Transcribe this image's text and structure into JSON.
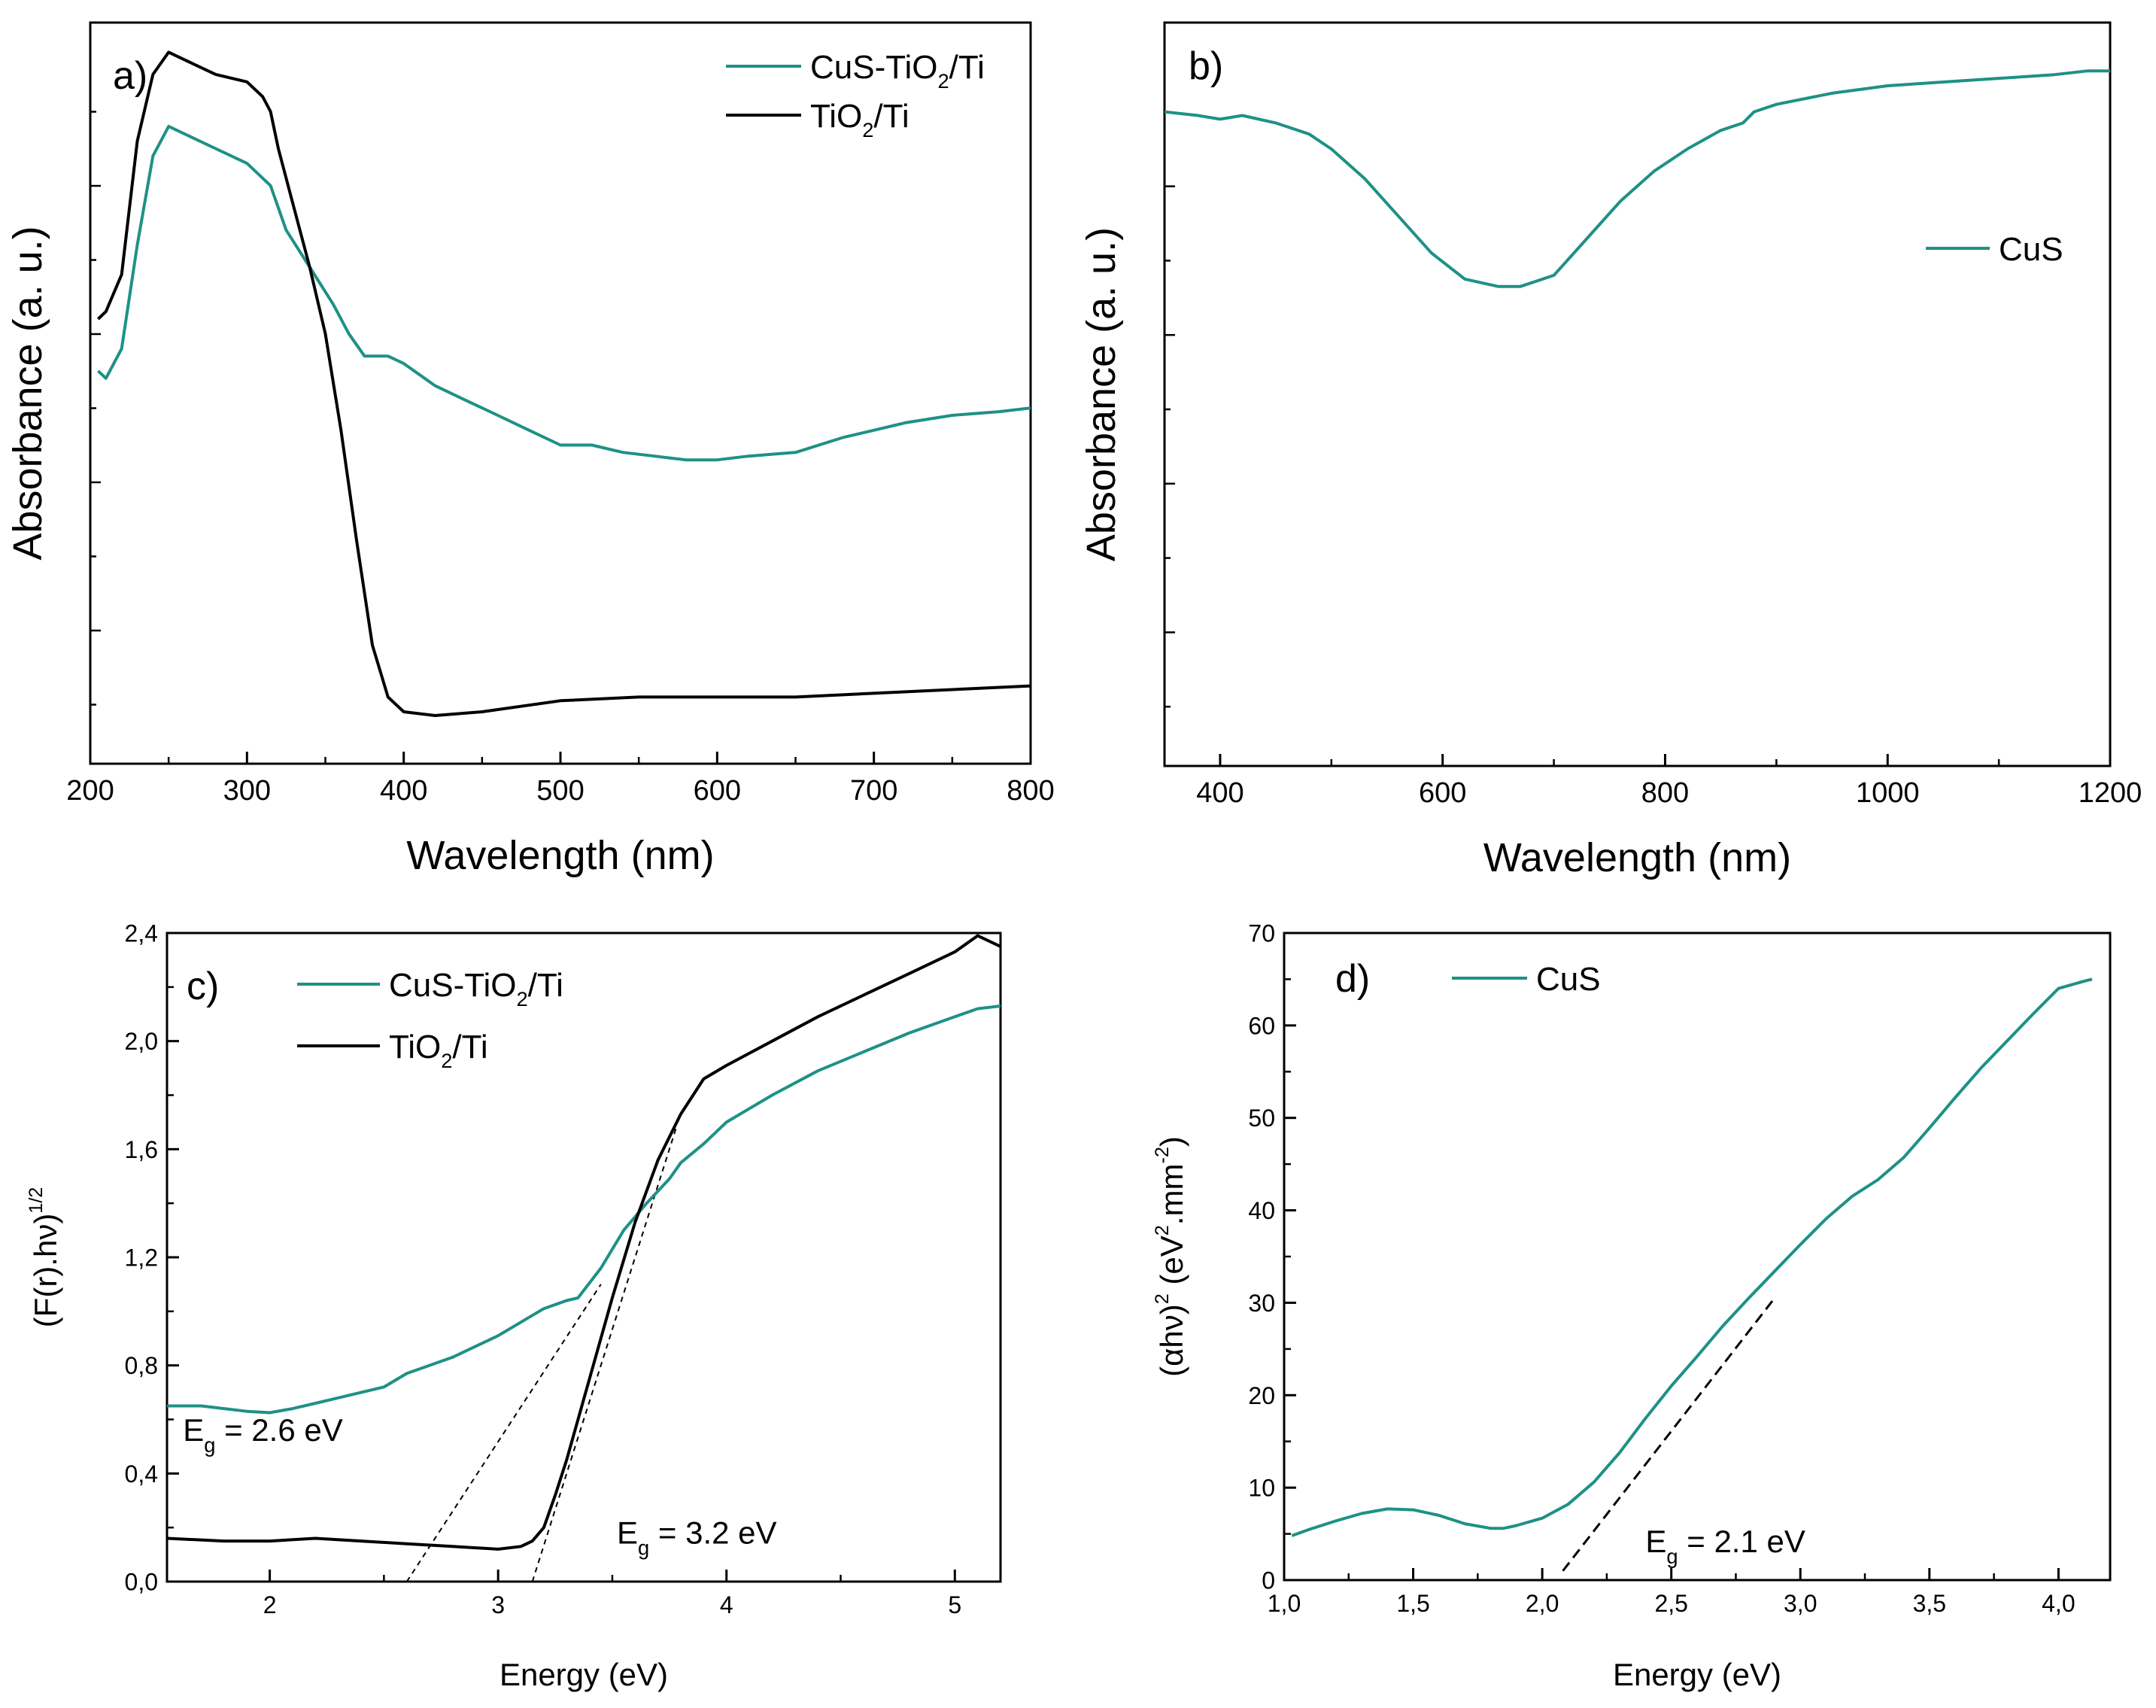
{
  "figure": {
    "colors": {
      "teal": "#1e9185",
      "black": "#000000"
    }
  },
  "chart_data": [
    {
      "id": "a",
      "type": "line",
      "panel_label": "a)",
      "xlabel": "Wavelength (nm)",
      "ylabel": "Absorbance (a. u.)",
      "xlim": [
        200,
        800
      ],
      "ylim": [
        0,
        1
      ],
      "y_ticks_labeled": false,
      "x_ticks": [
        "200",
        "300",
        "400",
        "500",
        "600",
        "700",
        "800"
      ],
      "legend": [
        {
          "prefix": "CuS-TiO",
          "sub": "2",
          "suffix": "/Ti",
          "color": "teal"
        },
        {
          "prefix": "TiO",
          "sub": "2",
          "suffix": "/Ti",
          "color": "black"
        }
      ],
      "series": [
        {
          "name": "CuS-TiO2/Ti",
          "color": "teal",
          "x": [
            205,
            210,
            220,
            230,
            240,
            250,
            260,
            280,
            300,
            315,
            325,
            340,
            355,
            365,
            375,
            390,
            400,
            420,
            440,
            460,
            480,
            500,
            520,
            540,
            560,
            580,
            600,
            620,
            650,
            680,
            700,
            720,
            750,
            780,
            800
          ],
          "y": [
            0.53,
            0.52,
            0.56,
            0.7,
            0.82,
            0.86,
            0.85,
            0.83,
            0.81,
            0.78,
            0.72,
            0.67,
            0.62,
            0.58,
            0.55,
            0.55,
            0.54,
            0.51,
            0.49,
            0.47,
            0.45,
            0.43,
            0.43,
            0.42,
            0.415,
            0.41,
            0.41,
            0.415,
            0.42,
            0.44,
            0.45,
            0.46,
            0.47,
            0.475,
            0.48
          ]
        },
        {
          "name": "TiO2/Ti",
          "color": "black",
          "x": [
            205,
            210,
            220,
            230,
            240,
            250,
            260,
            280,
            300,
            310,
            315,
            320,
            330,
            340,
            350,
            360,
            370,
            380,
            390,
            400,
            420,
            450,
            500,
            550,
            600,
            650,
            700,
            750,
            800
          ],
          "y": [
            0.6,
            0.61,
            0.66,
            0.84,
            0.93,
            0.96,
            0.95,
            0.93,
            0.92,
            0.9,
            0.88,
            0.83,
            0.75,
            0.67,
            0.58,
            0.45,
            0.3,
            0.16,
            0.09,
            0.07,
            0.065,
            0.07,
            0.085,
            0.09,
            0.09,
            0.09,
            0.095,
            0.1,
            0.105
          ]
        }
      ]
    },
    {
      "id": "b",
      "type": "line",
      "panel_label": "b)",
      "xlabel": "Wavelength (nm)",
      "ylabel": "Absorbance (a. u.)",
      "xlim": [
        350,
        1200
      ],
      "ylim": [
        0,
        1
      ],
      "y_ticks_labeled": false,
      "x_ticks": [
        "400",
        "600",
        "800",
        "1000",
        "1200"
      ],
      "legend": [
        {
          "prefix": "CuS",
          "sub": "",
          "suffix": "",
          "color": "teal"
        }
      ],
      "series": [
        {
          "name": "CuS",
          "color": "teal",
          "x": [
            350,
            380,
            400,
            420,
            450,
            480,
            500,
            530,
            560,
            590,
            620,
            650,
            670,
            700,
            730,
            760,
            790,
            820,
            850,
            870,
            880,
            900,
            950,
            1000,
            1050,
            1100,
            1150,
            1180,
            1200
          ],
          "y": [
            0.88,
            0.875,
            0.87,
            0.875,
            0.865,
            0.85,
            0.83,
            0.79,
            0.74,
            0.69,
            0.655,
            0.645,
            0.645,
            0.66,
            0.71,
            0.76,
            0.8,
            0.83,
            0.855,
            0.865,
            0.88,
            0.89,
            0.905,
            0.915,
            0.92,
            0.925,
            0.93,
            0.935,
            0.935
          ]
        }
      ]
    },
    {
      "id": "c",
      "type": "line",
      "panel_label": "c)",
      "xlabel": "Energy (eV)",
      "ylabel": "(F(r).hν)",
      "ylabel_sup": "1/2",
      "xlim": [
        1.55,
        5.2
      ],
      "ylim": [
        0,
        2.4
      ],
      "x_ticks": [
        "2",
        "3",
        "4",
        "5"
      ],
      "y_ticks": [
        "0,0",
        "0,4",
        "0,8",
        "1,2",
        "1,6",
        "2,0",
        "2,4"
      ],
      "legend": [
        {
          "prefix": "CuS-TiO",
          "sub": "2",
          "suffix": "/Ti",
          "color": "teal"
        },
        {
          "prefix": "TiO",
          "sub": "2",
          "suffix": "/Ti",
          "color": "black"
        }
      ],
      "annotations": [
        {
          "main": "E",
          "sub": "g",
          "rest": " = 2.6 eV",
          "x": 1.62,
          "y": 0.52
        },
        {
          "main": "E",
          "sub": "g",
          "rest": " = 3.2 eV",
          "x": 3.52,
          "y": 0.14
        }
      ],
      "tangents": [
        {
          "x": [
            2.6,
            3.45
          ],
          "y": [
            0.0,
            1.1
          ]
        },
        {
          "x": [
            3.15,
            3.78
          ],
          "y": [
            0.0,
            1.68
          ]
        }
      ],
      "series": [
        {
          "name": "CuS-TiO2/Ti",
          "color": "teal",
          "x": [
            1.55,
            1.7,
            1.8,
            1.9,
            2.0,
            2.1,
            2.2,
            2.3,
            2.4,
            2.5,
            2.6,
            2.8,
            3.0,
            3.1,
            3.2,
            3.3,
            3.35,
            3.45,
            3.55,
            3.65,
            3.75,
            3.8,
            3.9,
            4.0,
            4.2,
            4.4,
            4.6,
            4.8,
            5.0,
            5.1,
            5.2
          ],
          "y": [
            0.65,
            0.65,
            0.64,
            0.63,
            0.625,
            0.64,
            0.66,
            0.68,
            0.7,
            0.72,
            0.77,
            0.83,
            0.91,
            0.96,
            1.01,
            1.04,
            1.05,
            1.16,
            1.3,
            1.4,
            1.49,
            1.55,
            1.62,
            1.7,
            1.8,
            1.89,
            1.96,
            2.03,
            2.09,
            2.12,
            2.13
          ]
        },
        {
          "name": "TiO2/Ti",
          "color": "black",
          "x": [
            1.55,
            1.8,
            2.0,
            2.2,
            2.4,
            2.6,
            2.8,
            3.0,
            3.1,
            3.15,
            3.2,
            3.25,
            3.3,
            3.4,
            3.5,
            3.6,
            3.7,
            3.8,
            3.9,
            4.0,
            4.2,
            4.4,
            4.6,
            4.8,
            5.0,
            5.1,
            5.2
          ],
          "y": [
            0.16,
            0.15,
            0.15,
            0.16,
            0.15,
            0.14,
            0.13,
            0.12,
            0.13,
            0.15,
            0.2,
            0.32,
            0.45,
            0.75,
            1.05,
            1.33,
            1.56,
            1.73,
            1.86,
            1.91,
            2.0,
            2.09,
            2.17,
            2.25,
            2.33,
            2.39,
            2.35
          ]
        }
      ]
    },
    {
      "id": "d",
      "type": "line",
      "panel_label": "d)",
      "xlabel": "Energy (eV)",
      "ylabel": "(αhν)",
      "ylabel_sup": "2",
      "ylabel_unit_a": " (eV",
      "ylabel_unit_sup1": "2",
      "ylabel_unit_b": ".mm",
      "ylabel_unit_sup2": "-2",
      "ylabel_unit_c": ")",
      "xlim": [
        1.0,
        4.2
      ],
      "ylim": [
        0,
        70
      ],
      "x_ticks": [
        "1,0",
        "1,5",
        "2,0",
        "2,5",
        "3,0",
        "3,5",
        "4,0"
      ],
      "y_ticks": [
        "0",
        "10",
        "20",
        "30",
        "40",
        "50",
        "60",
        "70"
      ],
      "legend": [
        {
          "prefix": "CuS",
          "sub": "",
          "suffix": "",
          "color": "teal"
        }
      ],
      "annotations": [
        {
          "main": "E",
          "sub": "g",
          "rest": " = 2.1 eV",
          "x": 2.4,
          "y": 3.0
        }
      ],
      "tangents": [
        {
          "x": [
            2.08,
            2.9
          ],
          "y": [
            1.0,
            30.5
          ]
        }
      ],
      "series": [
        {
          "name": "CuS",
          "color": "teal",
          "x": [
            1.03,
            1.1,
            1.2,
            1.3,
            1.4,
            1.5,
            1.6,
            1.7,
            1.8,
            1.85,
            1.9,
            2.0,
            2.1,
            2.2,
            2.3,
            2.4,
            2.5,
            2.6,
            2.7,
            2.8,
            2.9,
            3.0,
            3.1,
            3.2,
            3.3,
            3.4,
            3.5,
            3.6,
            3.7,
            3.8,
            3.9,
            4.0,
            4.1,
            4.13
          ],
          "y": [
            4.8,
            5.5,
            6.4,
            7.2,
            7.7,
            7.6,
            7.0,
            6.1,
            5.6,
            5.6,
            5.9,
            6.7,
            8.2,
            10.6,
            13.8,
            17.5,
            21.0,
            24.2,
            27.5,
            30.5,
            33.4,
            36.3,
            39.1,
            41.5,
            43.3,
            45.7,
            48.9,
            52.2,
            55.4,
            58.3,
            61.2,
            64.0,
            64.8,
            65.0
          ]
        }
      ]
    }
  ]
}
